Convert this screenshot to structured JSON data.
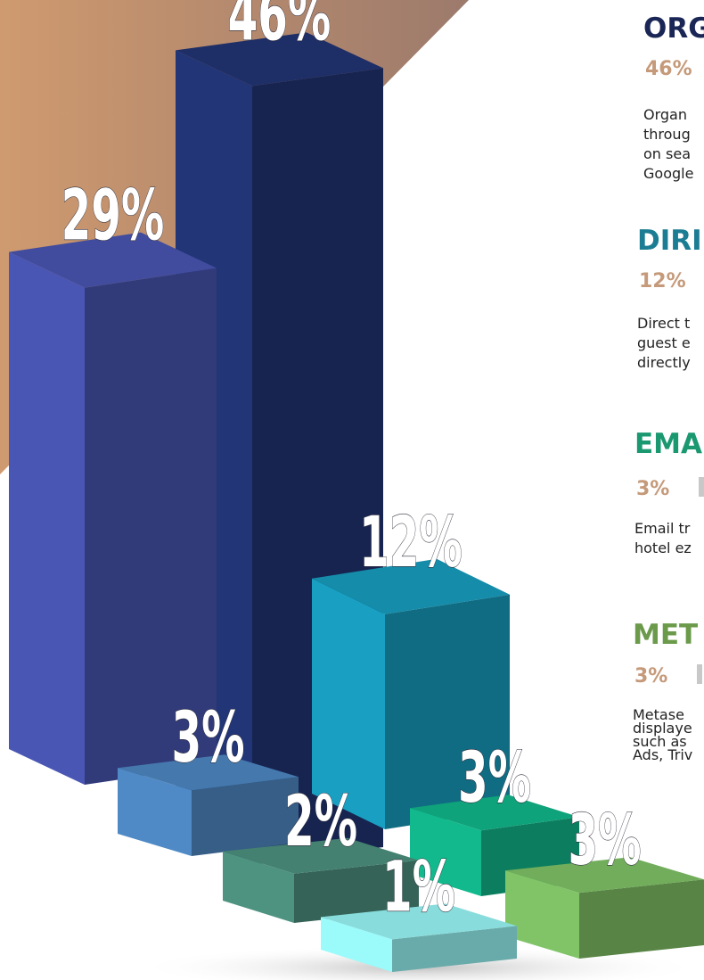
{
  "chart_data": {
    "type": "bar3d",
    "values": [
      46,
      29,
      12,
      3,
      2,
      1,
      3,
      3
    ],
    "value_labels": [
      "46%",
      "29%",
      "12%",
      "3%",
      "2%",
      "1%",
      "3%",
      "3%"
    ],
    "colors": [
      "#1b2a5e",
      "#3b4590",
      "#137f9a",
      "#3f6e9e",
      "#3e7566",
      "#7cc8c8",
      "#0e9470",
      "#679d52"
    ]
  },
  "panel": {
    "sections": [
      {
        "title": "ORG",
        "stat": "46%",
        "color": "#1a2656",
        "lines": [
          "Organ",
          "throug",
          "on sea",
          "Google"
        ]
      },
      {
        "title": "DIRI",
        "stat": "12%",
        "color": "#1b7d93",
        "lines": [
          "Direct t",
          "guest e",
          "directly"
        ]
      },
      {
        "title": "EMA",
        "stat": "3%",
        "color": "#1a9870",
        "lines": [
          "Email tr",
          "hotel ez"
        ]
      },
      {
        "title": "MET",
        "stat": "3%",
        "color": "#6a9a4a",
        "lines": [
          "Metase",
          "displaye",
          "such as",
          "Ads, Triv"
        ]
      }
    ]
  }
}
